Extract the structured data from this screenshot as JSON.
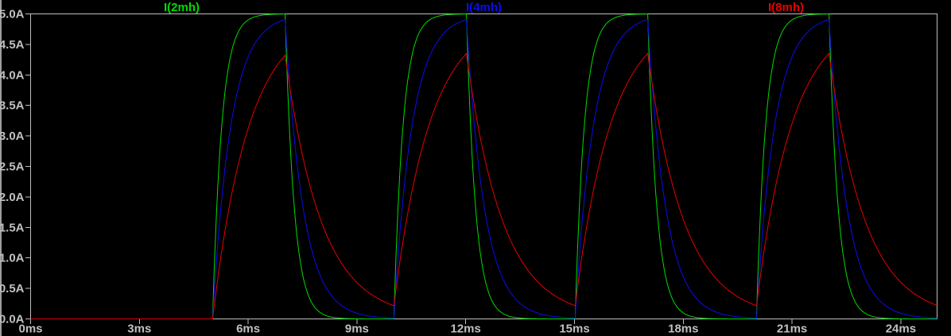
{
  "app": {
    "background": "#000000",
    "frame_color": "#bdbdbd",
    "text_color": "#c0c0c0",
    "pane_edge_color": "#9f9f9f"
  },
  "chart_data": {
    "type": "line",
    "title": "",
    "grid": false,
    "legend_position": "top",
    "x_axis": {
      "unit": "ms",
      "min": 0,
      "max": 25,
      "tick_step": 3,
      "tick_values": [
        0,
        3,
        6,
        9,
        12,
        15,
        18,
        21,
        24
      ],
      "tick_labels": [
        "0ms",
        "3ms",
        "6ms",
        "9ms",
        "12ms",
        "15ms",
        "18ms",
        "21ms",
        "24ms"
      ]
    },
    "y_axis": {
      "unit": "A",
      "min": 0,
      "max": 5,
      "tick_step": 0.5,
      "tick_values": [
        0,
        0.5,
        1,
        1.5,
        2,
        2.5,
        3,
        3.5,
        4,
        4.5,
        5
      ],
      "tick_labels": [
        "0.0A",
        "0.5A",
        "1.0A",
        "1.5A",
        "2.0A",
        "2.5A",
        "3.0A",
        "3.5A",
        "4.0A",
        "4.5A",
        "5.0A"
      ]
    },
    "series": [
      {
        "name": "I(2mh)",
        "color": "#00dc00",
        "tau_ms": 0.25,
        "approx_peak_A": 5.0
      },
      {
        "name": "I(4mh)",
        "color": "#0c0cf0",
        "tau_ms": 0.5,
        "approx_peak_A": 4.9
      },
      {
        "name": "I(8mh)",
        "color": "#e60000",
        "tau_ms": 1.0,
        "approx_peak_A": 4.3
      }
    ],
    "excitation": {
      "model": "RL exponential charge/discharge toward steady state",
      "steady_state_A": 5,
      "pulse_on_ms": [
        5,
        10,
        15,
        20
      ],
      "pulse_off_ms": [
        7,
        12,
        17,
        22
      ]
    }
  }
}
